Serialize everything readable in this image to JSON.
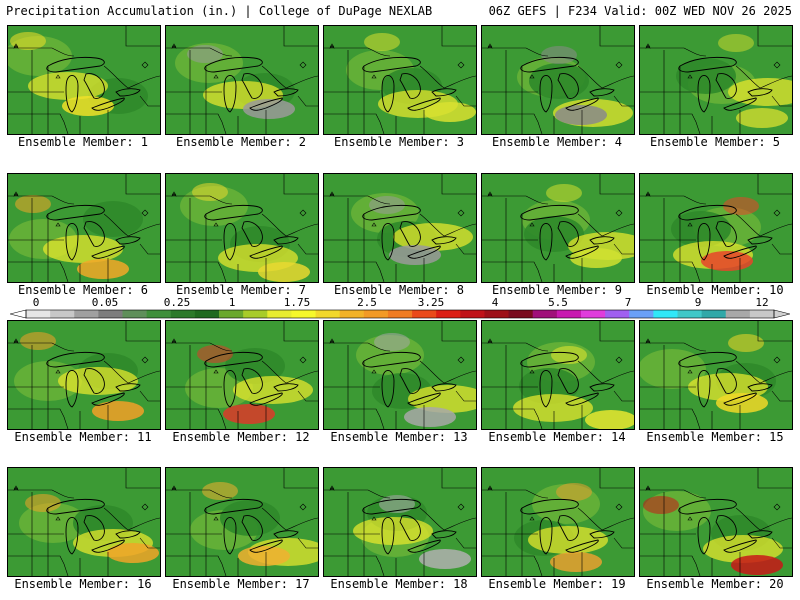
{
  "header": {
    "title": "Precipitation Accumulation (in.) | College of DuPage NEXLAB",
    "run_info": "06Z GEFS | F234 Valid: 00Z WED NOV 26 2025"
  },
  "colorbar": {
    "tick_labels": [
      "0",
      "0.05",
      "0.25",
      "1",
      "1.75",
      "2.5",
      "3.25",
      "4",
      "5.5",
      "7",
      "9",
      "12"
    ],
    "colors": [
      "#e6e6e6",
      "#c8c8c8",
      "#a0a0a0",
      "#7d7d7d",
      "#5f8f5a",
      "#3f8f3a",
      "#2c7a2a",
      "#1f6a1f",
      "#6aa82d",
      "#a8cc2a",
      "#e8ec30",
      "#f6f82a",
      "#f2d82a",
      "#f2b228",
      "#f29a26",
      "#f07c22",
      "#ea4a1a",
      "#dc1e14",
      "#c01218",
      "#9e1018",
      "#7a0c20",
      "#a0107a",
      "#c818b0",
      "#e03cdc",
      "#a060f0",
      "#6aa0f8",
      "#30e8f8",
      "#40c8c8",
      "#30a8a8",
      "#a8a8a8",
      "#c8c8c8"
    ]
  },
  "members": [
    {
      "label": "Ensemble Member: 1",
      "color": "#f0e028"
    },
    {
      "label": "Ensemble Member: 2",
      "color": "#9a9a9a"
    },
    {
      "label": "Ensemble Member: 3",
      "color": "#d8e030"
    },
    {
      "label": "Ensemble Member: 4",
      "color": "#8a8a8a"
    },
    {
      "label": "Ensemble Member: 5",
      "color": "#c8d830"
    },
    {
      "label": "Ensemble Member: 6",
      "color": "#f2a828"
    },
    {
      "label": "Ensemble Member: 7",
      "color": "#e8d830"
    },
    {
      "label": "Ensemble Member: 8",
      "color": "#9a9a9a"
    },
    {
      "label": "Ensemble Member: 9",
      "color": "#d0e030"
    },
    {
      "label": "Ensemble Member: 10",
      "color": "#e8442a"
    },
    {
      "label": "Ensemble Member: 11",
      "color": "#f2a028"
    },
    {
      "label": "Ensemble Member: 12",
      "color": "#dc3a2a"
    },
    {
      "label": "Ensemble Member: 13",
      "color": "#a8a8a8"
    },
    {
      "label": "Ensemble Member: 14",
      "color": "#e8e830"
    },
    {
      "label": "Ensemble Member: 15",
      "color": "#f0d828"
    },
    {
      "label": "Ensemble Member: 16",
      "color": "#f0a428"
    },
    {
      "label": "Ensemble Member: 17",
      "color": "#f0b030"
    },
    {
      "label": "Ensemble Member: 18",
      "color": "#b0b0b0"
    },
    {
      "label": "Ensemble Member: 19",
      "color": "#e8a030"
    },
    {
      "label": "Ensemble Member: 20",
      "color": "#c81818"
    }
  ]
}
